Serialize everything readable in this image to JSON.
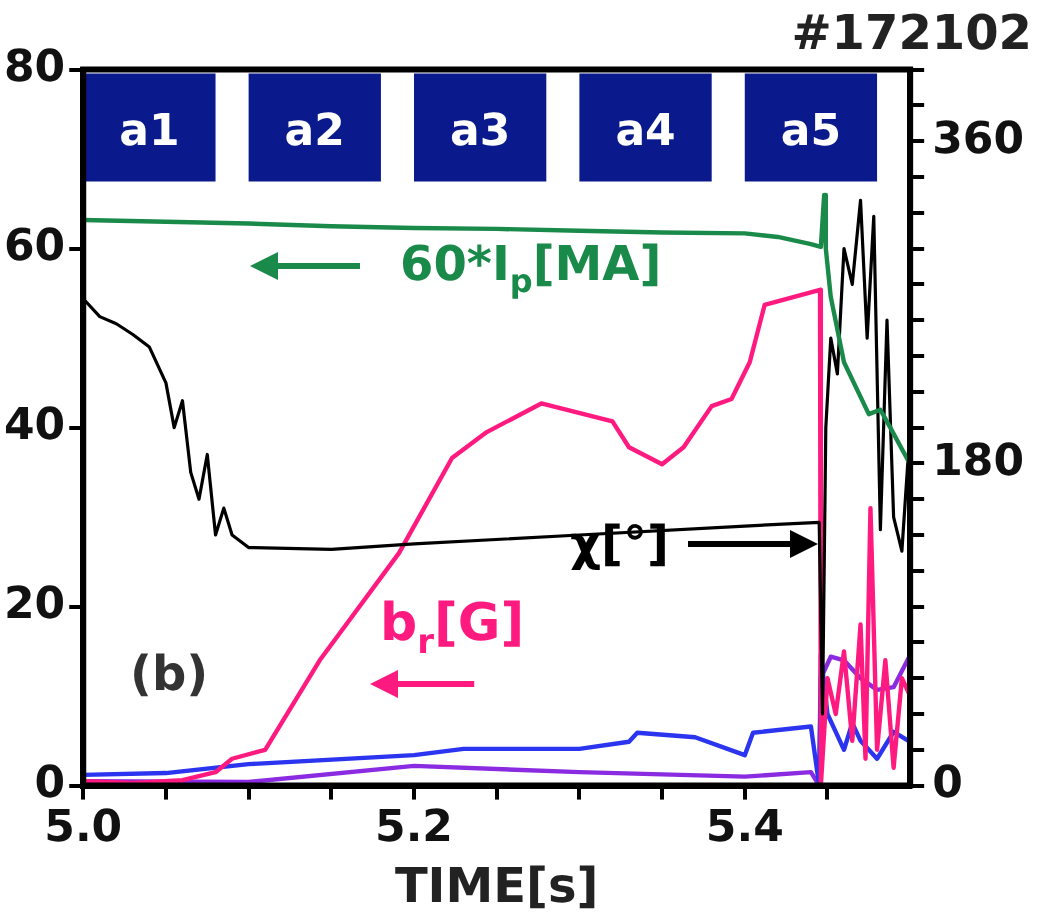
{
  "chart_data": {
    "type": "line",
    "title": "#172102",
    "xlabel": "TIME[s]",
    "xlim": [
      5.0,
      5.5
    ],
    "xticks": [
      {
        "value": 5.0,
        "label": "5.0"
      },
      {
        "value": 5.05,
        "label": null
      },
      {
        "value": 5.1,
        "label": null
      },
      {
        "value": 5.15,
        "label": null
      },
      {
        "value": 5.2,
        "label": "5.2"
      },
      {
        "value": 5.25,
        "label": null
      },
      {
        "value": 5.3,
        "label": null
      },
      {
        "value": 5.35,
        "label": null
      },
      {
        "value": 5.4,
        "label": "5.4"
      },
      {
        "value": 5.45,
        "label": null
      }
    ],
    "ylim": [
      0,
      80
    ],
    "yticks": [
      0,
      20,
      40,
      60,
      80
    ],
    "y2lim": [
      0,
      400
    ],
    "y2ticks": [
      0,
      {
        "value": 20,
        "label": null
      },
      {
        "value": 40,
        "label": null
      },
      {
        "value": 60,
        "label": null
      },
      {
        "value": 80,
        "label": null
      },
      {
        "value": 100,
        "label": null
      },
      {
        "value": 120,
        "label": null
      },
      {
        "value": 140,
        "label": null
      },
      {
        "value": 160,
        "label": null
      },
      180,
      {
        "value": 200,
        "label": null
      },
      {
        "value": 220,
        "label": null
      },
      {
        "value": 240,
        "label": null
      },
      {
        "value": 260,
        "label": null
      },
      {
        "value": 280,
        "label": null
      },
      {
        "value": 300,
        "label": null
      },
      {
        "value": 320,
        "label": null
      },
      {
        "value": 340,
        "label": null
      },
      360,
      {
        "value": 380,
        "label": null
      },
      {
        "value": 400,
        "label": null
      }
    ],
    "grid": false,
    "legend": "top left",
    "marker": "none",
    "line_style": "solid",
    "series": [
      {
        "name": "60*I$_{p}$[MA]",
        "color": "#1a8a4a",
        "x": [
          5.0,
          5.05,
          5.1,
          5.15,
          5.2,
          5.25,
          5.3,
          5.35,
          5.4,
          5.42,
          5.44,
          5.446,
          5.448,
          5.449,
          5.452,
          5.46,
          5.475,
          5.482,
          5.488,
          5.5
        ],
        "values": [
          63.2,
          63,
          62.8,
          62.5,
          62.3,
          62.2,
          62,
          61.8,
          61.7,
          61.3,
          60.5,
          60.2,
          66,
          60,
          54.6,
          47.3,
          41.5,
          42,
          40,
          35.9
        ]
      },
      {
        "name": "χ[°]",
        "axis": "y2",
        "color": "#000000",
        "x": [
          5.0,
          5.01,
          5.02,
          5.03,
          5.04,
          5.05,
          5.055,
          5.06,
          5.065,
          5.07,
          5.075,
          5.08,
          5.085,
          5.09,
          5.1,
          5.15,
          5.2,
          5.3,
          5.4,
          5.445,
          5.447,
          5.449,
          5.452,
          5.456,
          5.46,
          5.465,
          5.47,
          5.474,
          5.478,
          5.482,
          5.486,
          5.49,
          5.495,
          5.5
        ],
        "values": [
          272,
          262,
          258,
          252,
          245,
          225,
          200,
          215,
          175,
          160,
          185,
          140,
          155,
          140,
          133,
          132,
          135,
          140,
          145,
          147,
          40,
          200,
          250,
          230,
          300,
          280,
          327,
          250,
          318,
          143,
          260,
          150,
          131,
          200
        ]
      },
      {
        "name": "b$_{r}$[G]",
        "color": "#ff1a80",
        "x": [
          5.0,
          5.03,
          5.06,
          5.08,
          5.09,
          5.11,
          5.143,
          5.159,
          5.191,
          5.223,
          5.244,
          5.277,
          5.32,
          5.33,
          5.35,
          5.363,
          5.38,
          5.392,
          5.403,
          5.412,
          5.4455,
          5.446,
          5.45,
          5.455,
          5.46,
          5.465,
          5.47,
          5.473,
          5.476,
          5.48,
          5.485,
          5.49,
          5.495,
          5.5
        ],
        "values": [
          0.5,
          0.3,
          0.6,
          1.5,
          3,
          4,
          14,
          18,
          26,
          36.6,
          39.5,
          42.7,
          40.7,
          37.8,
          35.9,
          37.8,
          42.4,
          43.2,
          47.3,
          53.7,
          55.4,
          0,
          12,
          8,
          15,
          5,
          18,
          3,
          31,
          4,
          14,
          2,
          12,
          10
        ]
      },
      {
        "color": "#2b35f0",
        "x": [
          5.0,
          5.05,
          5.1,
          5.2,
          5.23,
          5.3,
          5.33,
          5.335,
          5.37,
          5.4,
          5.405,
          5.44,
          5.445,
          5.446,
          5.45,
          5.455,
          5.46,
          5.465,
          5.47,
          5.48,
          5.49,
          5.5
        ],
        "values": [
          1.2,
          1.4,
          2.4,
          3.4,
          4.1,
          4.1,
          4.9,
          5.9,
          5.4,
          3.4,
          5.9,
          6.6,
          0,
          14.6,
          8,
          6,
          4,
          7,
          5,
          3,
          6,
          4.9
        ]
      },
      {
        "color": "#8a2be2",
        "x": [
          5.0,
          5.1,
          5.2,
          5.3,
          5.4,
          5.44,
          5.445,
          5.446,
          5.452,
          5.46,
          5.47,
          5.48,
          5.49,
          5.5
        ],
        "values": [
          0.5,
          0.4,
          2.2,
          1.5,
          1,
          1.5,
          0,
          12,
          14.4,
          14,
          12,
          10.7,
          11,
          14.6
        ]
      }
    ],
    "bands": [
      {
        "axis": "x",
        "from": 5.0,
        "to": 5.08,
        "label": "a1",
        "color": "#0a1a8c"
      },
      {
        "axis": "x",
        "from": 5.1,
        "to": 5.18,
        "label": "a2",
        "color": "#0a1a8c"
      },
      {
        "axis": "x",
        "from": 5.2,
        "to": 5.28,
        "label": "a3",
        "color": "#0a1a8c"
      },
      {
        "axis": "x",
        "from": 5.3,
        "to": 5.38,
        "label": "a4",
        "color": "#0a1a8c"
      },
      {
        "axis": "x",
        "from": 5.4,
        "to": 5.48,
        "label": "a5",
        "color": "#0a1a8c"
      }
    ],
    "annotations": [
      "(b)"
    ]
  }
}
